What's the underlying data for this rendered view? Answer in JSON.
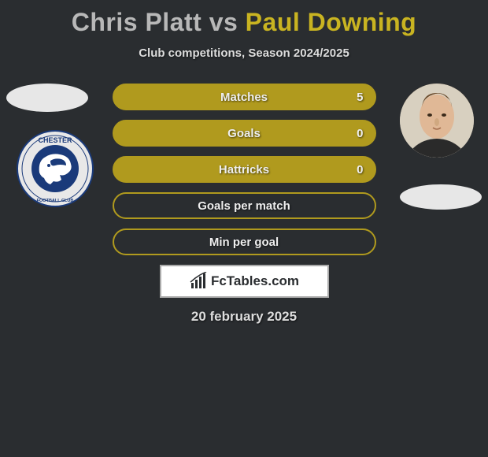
{
  "title": {
    "player1": "Chris Platt",
    "vs": "vs",
    "player2": "Paul Downing"
  },
  "subtitle": "Club competitions, Season 2024/2025",
  "stats": [
    {
      "label": "Matches",
      "value": "5",
      "filled": true
    },
    {
      "label": "Goals",
      "value": "0",
      "filled": true
    },
    {
      "label": "Hattricks",
      "value": "0",
      "filled": true
    },
    {
      "label": "Goals per match",
      "value": "",
      "filled": false
    },
    {
      "label": "Min per goal",
      "value": "",
      "filled": false
    }
  ],
  "logo_text": "FcTables.com",
  "date": "20 february 2025",
  "colors": {
    "accent": "#b09a1e",
    "accent_title": "#c9b421",
    "bg": "#2a2d30",
    "text": "#ddd"
  },
  "badge": {
    "name": "CHESTER",
    "subtitle": "FOOTBALL CLUB"
  }
}
